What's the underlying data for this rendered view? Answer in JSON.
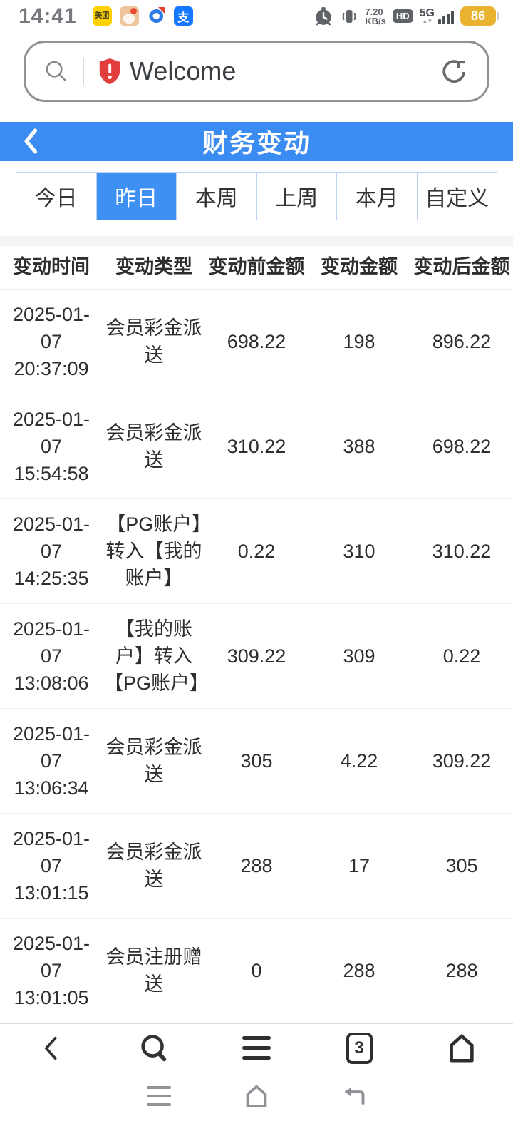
{
  "status_bar": {
    "time": "14:41",
    "notification_icons": [
      "meituan-app-icon",
      "pet-app-icon",
      "map-pin-app-icon",
      "alipay-app-icon"
    ],
    "meituan_glyph": "美团",
    "alipay_glyph": "支",
    "network_speed": "7.20",
    "network_speed_unit": "KB/s",
    "hd_badge": "HD",
    "network_type": "5G",
    "battery_level": "86",
    "battery_color": "#e9b22f"
  },
  "address_bar": {
    "url_text": "Welcome",
    "security_icon": "red-shield-warning",
    "shield_color": "#e23d3d"
  },
  "page": {
    "title": "财务变动",
    "header_color": "#3b8cf2",
    "tabs": [
      {
        "label": "今日",
        "active": false
      },
      {
        "label": "昨日",
        "active": true
      },
      {
        "label": "本周",
        "active": false
      },
      {
        "label": "上周",
        "active": false
      },
      {
        "label": "本月",
        "active": false
      },
      {
        "label": "自定义",
        "active": false
      }
    ],
    "table": {
      "headers": [
        "变动时间",
        "变动类型",
        "变动前金额",
        "变动金额",
        "变动后金额"
      ],
      "col_keys": [
        "time",
        "type",
        "amount-before",
        "amount-change",
        "amount-after"
      ],
      "rows": [
        [
          "2025-01-07 20:37:09",
          "会员彩金派送",
          "698.22",
          "198",
          "896.22"
        ],
        [
          "2025-01-07 15:54:58",
          "会员彩金派送",
          "310.22",
          "388",
          "698.22"
        ],
        [
          "2025-01-07 14:25:35",
          "【PG账户】转入【我的账户】",
          "0.22",
          "310",
          "310.22"
        ],
        [
          "2025-01-07 13:08:06",
          "【我的账户】转入【PG账户】",
          "309.22",
          "309",
          "0.22"
        ],
        [
          "2025-01-07 13:06:34",
          "会员彩金派送",
          "305",
          "4.22",
          "309.22"
        ],
        [
          "2025-01-07 13:01:15",
          "会员彩金派送",
          "288",
          "17",
          "305"
        ],
        [
          "2025-01-07 13:01:05",
          "会员注册赠送",
          "0",
          "288",
          "288"
        ]
      ]
    }
  },
  "browser_toolbar": {
    "tab_count": "3",
    "icons": [
      "back-icon",
      "search-icon",
      "menu-icon",
      "tabs-icon",
      "home-icon"
    ]
  },
  "system_navbar": {
    "icons": [
      "menu-icon",
      "home-icon",
      "return-icon"
    ]
  }
}
